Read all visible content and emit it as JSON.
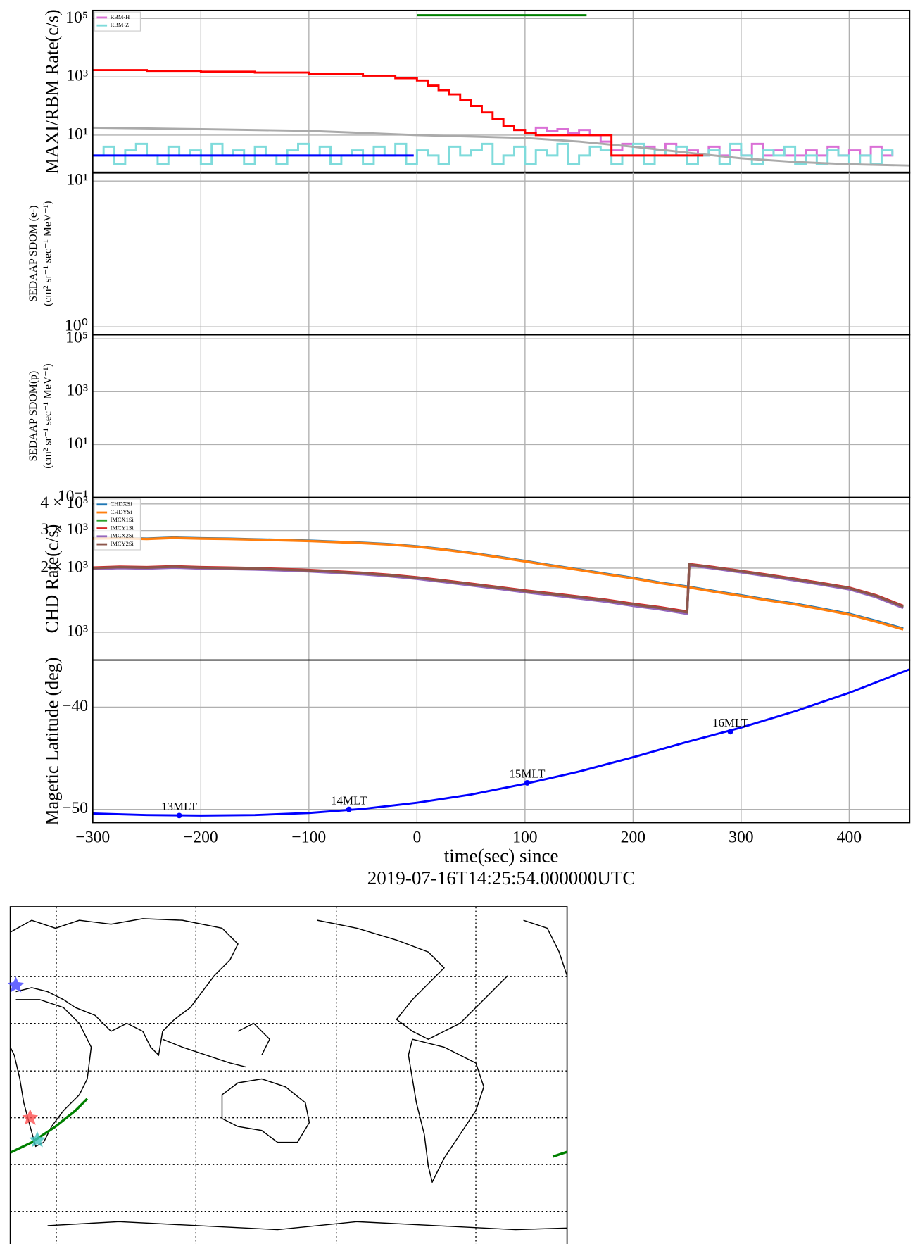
{
  "chart_data": [
    {
      "type": "line",
      "ylabel": [
        "MAXI/RBM Rate(c/s)"
      ],
      "log_y": true,
      "grid": true,
      "legend": "upper left",
      "xlim": [
        -300,
        456
      ],
      "xticks": [
        -300,
        -200,
        -100,
        0,
        100,
        200,
        300,
        400
      ],
      "ylim": [
        0.5,
        190000
      ],
      "yticks": [
        {
          "value": 10,
          "label": "10¹"
        },
        {
          "value": 1000,
          "label": "10³"
        },
        {
          "value": 100000,
          "label": "10⁵"
        }
      ],
      "series": [
        {
          "name": "RBM-H",
          "color": "#da70d6",
          "step": true,
          "x": [
            80,
            90,
            100,
            110,
            120,
            130,
            140,
            150,
            160,
            170,
            180,
            190,
            200,
            210,
            220,
            230,
            240,
            250,
            260,
            270,
            280,
            290,
            300,
            310,
            320,
            330,
            340,
            350,
            360,
            370,
            380,
            390,
            400,
            410,
            420,
            430,
            440
          ],
          "values": [
            20,
            15,
            12,
            18,
            14,
            16,
            12,
            15,
            10,
            6,
            3,
            5,
            2,
            4,
            3,
            5,
            2,
            3,
            2,
            4,
            2,
            3,
            2,
            5,
            2,
            3,
            2,
            2,
            3,
            2,
            4,
            2,
            3,
            2,
            4,
            2,
            3
          ]
        },
        {
          "name": "RBM-Z",
          "color": "#7fdbdb",
          "step": true,
          "x": [
            -300,
            -290,
            -280,
            -270,
            -260,
            -250,
            -240,
            -230,
            -220,
            -210,
            -200,
            -190,
            -180,
            -170,
            -160,
            -150,
            -140,
            -130,
            -120,
            -110,
            -100,
            -90,
            -80,
            -70,
            -60,
            -50,
            -40,
            -30,
            -20,
            -10,
            0,
            10,
            20,
            30,
            40,
            50,
            60,
            70,
            80,
            90,
            100,
            110,
            120,
            130,
            140,
            150,
            160,
            170,
            180,
            190,
            200,
            210,
            220,
            230,
            240,
            250,
            260,
            270,
            280,
            290,
            300,
            310,
            320,
            330,
            340,
            350,
            360,
            370,
            380,
            390,
            400,
            410,
            420,
            430,
            440
          ],
          "values": [
            2,
            4,
            1,
            3,
            5,
            2,
            1,
            4,
            2,
            3,
            1,
            5,
            2,
            3,
            1,
            4,
            2,
            1,
            3,
            5,
            2,
            4,
            1,
            2,
            3,
            1,
            4,
            2,
            5,
            1,
            3,
            2,
            1,
            4,
            2,
            3,
            5,
            1,
            2,
            4,
            1,
            3,
            2,
            5,
            1,
            2,
            4,
            3,
            1,
            2,
            5,
            1,
            3,
            2,
            4,
            1,
            2,
            3,
            1,
            5,
            2,
            1,
            3,
            2,
            4,
            1,
            2,
            1,
            3,
            2,
            1,
            2,
            1,
            3,
            2
          ]
        },
        {
          "color": "#aaaaaa",
          "x": [
            -300,
            -200,
            -100,
            0,
            100,
            150,
            200,
            250,
            300,
            350,
            400,
            456
          ],
          "values": [
            18,
            16,
            14,
            10,
            8,
            6,
            4,
            2.5,
            1.6,
            1.2,
            1.0,
            0.9
          ]
        },
        {
          "color": "#ff0000",
          "step": true,
          "x": [
            -300,
            -250,
            -200,
            -150,
            -100,
            -50,
            -20,
            0,
            10,
            20,
            30,
            40,
            50,
            60,
            70,
            80,
            90,
            100,
            110,
            160,
            180,
            265
          ],
          "values": [
            1700,
            1600,
            1500,
            1400,
            1250,
            1100,
            900,
            750,
            500,
            350,
            250,
            160,
            100,
            60,
            35,
            20,
            15,
            12,
            10,
            10,
            2,
            2
          ]
        },
        {
          "color": "#0000ff",
          "step": true,
          "x": [
            -300,
            -3
          ],
          "values": [
            2,
            2
          ]
        },
        {
          "color": "#008000",
          "x": [
            0,
            157
          ],
          "values": [
            130000,
            130000
          ]
        }
      ]
    },
    {
      "type": "line",
      "ylabel": [
        "SEDAAP SDOM (e-)",
        "(cm² sr⁻¹ sec⁻¹ MeV⁻¹)"
      ],
      "log_y": true,
      "grid": true,
      "xlim": [
        -300,
        456
      ],
      "xticks": [
        -300,
        -200,
        -100,
        0,
        100,
        200,
        300,
        400
      ],
      "ylim": [
        0.88,
        11.5
      ],
      "yticks": [
        {
          "value": 1,
          "label": "10⁰"
        },
        {
          "value": 10,
          "label": "10¹"
        }
      ],
      "series": []
    },
    {
      "type": "line",
      "ylabel": [
        "SEDAAP SDOM(p)",
        "(cm² sr⁻¹ sec⁻¹ MeV⁻¹)"
      ],
      "log_y": true,
      "grid": true,
      "xlim": [
        -300,
        456
      ],
      "xticks": [
        -300,
        -200,
        -100,
        0,
        100,
        200,
        300,
        400
      ],
      "ylim": [
        0.1,
        140000
      ],
      "yticks": [
        {
          "value": 0.1,
          "label": "10⁻¹"
        },
        {
          "value": 10,
          "label": "10¹"
        },
        {
          "value": 1000,
          "label": "10³"
        },
        {
          "value": 100000,
          "label": "10⁵"
        }
      ],
      "series": []
    },
    {
      "type": "line",
      "ylabel": [
        "CHD Rate(c/s)"
      ],
      "log_y": true,
      "grid": true,
      "legend": "upper left",
      "xlim": [
        -300,
        456
      ],
      "xticks": [
        -300,
        -200,
        -100,
        0,
        100,
        200,
        300,
        400
      ],
      "ylim": [
        740,
        4290
      ],
      "yticks": [
        {
          "value": 1000,
          "label": "10³"
        },
        {
          "value": 2000,
          "label": "2 × 10³"
        },
        {
          "value": 3000,
          "label": "3 × 10³"
        },
        {
          "value": 4000,
          "label": "4 × 10³"
        }
      ],
      "series": [
        {
          "name": "CHDXSi",
          "color": "#1f77b4",
          "x": [
            -300,
            -275,
            -250,
            -225,
            -200,
            -175,
            -150,
            -125,
            -100,
            -75,
            -50,
            -25,
            0,
            25,
            50,
            75,
            100,
            125,
            150,
            175,
            200,
            225,
            250,
            275,
            300,
            325,
            350,
            375,
            400,
            425,
            450
          ],
          "values": [
            2760,
            2770,
            2750,
            2780,
            2760,
            2750,
            2730,
            2710,
            2690,
            2660,
            2630,
            2590,
            2530,
            2450,
            2360,
            2260,
            2160,
            2060,
            1970,
            1880,
            1800,
            1710,
            1640,
            1560,
            1490,
            1420,
            1360,
            1290,
            1220,
            1130,
            1040
          ]
        },
        {
          "name": "CHDYSi",
          "color": "#ff7f0e",
          "x": [
            -300,
            -275,
            -250,
            -225,
            -200,
            -175,
            -150,
            -125,
            -100,
            -75,
            -50,
            -25,
            0,
            25,
            50,
            75,
            100,
            125,
            150,
            175,
            200,
            225,
            250,
            275,
            300,
            325,
            350,
            375,
            400,
            425,
            450
          ],
          "values": [
            2750,
            2760,
            2740,
            2770,
            2750,
            2740,
            2720,
            2700,
            2680,
            2650,
            2620,
            2580,
            2520,
            2440,
            2350,
            2250,
            2150,
            2050,
            1960,
            1870,
            1790,
            1700,
            1630,
            1550,
            1480,
            1410,
            1350,
            1280,
            1210,
            1120,
            1030
          ]
        },
        {
          "name": "IMCX1Si",
          "color": "#2ca02c",
          "x": [
            -300,
            -275,
            -250,
            -225,
            -200,
            -175,
            -150,
            -125,
            -100,
            -75,
            -50,
            -25,
            0,
            25,
            50,
            75,
            100,
            125,
            150,
            175,
            200,
            225,
            250,
            252,
            275,
            300,
            325,
            350,
            375,
            400,
            425,
            450
          ],
          "values": [
            1990,
            2010,
            2000,
            2020,
            2000,
            1990,
            1980,
            1960,
            1940,
            1910,
            1880,
            1840,
            1790,
            1730,
            1670,
            1610,
            1550,
            1500,
            1450,
            1400,
            1340,
            1290,
            1230,
            2070,
            2000,
            1920,
            1840,
            1760,
            1680,
            1600,
            1470,
            1310
          ]
        },
        {
          "name": "IMCY1Si",
          "color": "#d62728",
          "x": [
            -300,
            -275,
            -250,
            -225,
            -200,
            -175,
            -150,
            -125,
            -100,
            -75,
            -50,
            -25,
            0,
            25,
            50,
            75,
            100,
            125,
            150,
            175,
            200,
            225,
            250,
            252,
            275,
            300,
            325,
            350,
            375,
            400,
            425,
            450
          ],
          "values": [
            2010,
            2030,
            2020,
            2040,
            2020,
            2010,
            2000,
            1980,
            1960,
            1930,
            1900,
            1860,
            1810,
            1750,
            1690,
            1630,
            1570,
            1520,
            1470,
            1420,
            1360,
            1310,
            1250,
            2090,
            2020,
            1940,
            1860,
            1780,
            1700,
            1620,
            1490,
            1330
          ]
        },
        {
          "name": "IMCX2Si",
          "color": "#9467bd",
          "x": [
            -300,
            -275,
            -250,
            -225,
            -200,
            -175,
            -150,
            -125,
            -100,
            -75,
            -50,
            -25,
            0,
            25,
            50,
            75,
            100,
            125,
            150,
            175,
            200,
            225,
            250,
            252,
            275,
            300,
            325,
            350,
            375,
            400,
            425,
            450
          ],
          "values": [
            1980,
            2000,
            1990,
            2010,
            1990,
            1980,
            1970,
            1950,
            1930,
            1900,
            1870,
            1830,
            1780,
            1720,
            1660,
            1600,
            1540,
            1490,
            1440,
            1390,
            1330,
            1280,
            1220,
            2060,
            1990,
            1910,
            1830,
            1750,
            1670,
            1590,
            1460,
            1300
          ]
        },
        {
          "name": "IMCY2Si",
          "color": "#8c564b",
          "x": [
            -300,
            -275,
            -250,
            -225,
            -200,
            -175,
            -150,
            -125,
            -100,
            -75,
            -50,
            -25,
            0,
            25,
            50,
            75,
            100,
            125,
            150,
            175,
            200,
            225,
            250,
            252,
            275,
            300,
            325,
            350,
            375,
            400,
            425,
            450
          ],
          "values": [
            2000,
            2020,
            2010,
            2030,
            2010,
            2000,
            1990,
            1970,
            1950,
            1920,
            1890,
            1850,
            1800,
            1740,
            1680,
            1620,
            1560,
            1510,
            1460,
            1410,
            1350,
            1300,
            1240,
            2080,
            2010,
            1930,
            1850,
            1770,
            1690,
            1610,
            1480,
            1320
          ]
        }
      ]
    },
    {
      "type": "line",
      "ylabel": [
        "Magetic Latitude  (deg)"
      ],
      "log_y": false,
      "grid": true,
      "xlim": [
        -300,
        456
      ],
      "xticks": [
        {
          "value": -300,
          "label": "−300"
        },
        {
          "value": -200,
          "label": "−200"
        },
        {
          "value": -100,
          "label": "−100"
        },
        0,
        100,
        200,
        300,
        400
      ],
      "xlabel": [
        "time(sec) since",
        "2019-07-16T14:25:54.000000UTC"
      ],
      "ylim": [
        -51.3,
        -35.4
      ],
      "yticks": [
        {
          "value": -50,
          "label": "−50"
        },
        {
          "value": -40,
          "label": "−40"
        }
      ],
      "series": [
        {
          "color": "#0000ff",
          "x": [
            -300,
            -250,
            -200,
            -150,
            -100,
            -50,
            0,
            50,
            100,
            150,
            200,
            250,
            300,
            350,
            400,
            456
          ],
          "values": [
            -50.4,
            -50.55,
            -50.6,
            -50.55,
            -50.35,
            -49.95,
            -49.35,
            -48.55,
            -47.5,
            -46.3,
            -44.9,
            -43.4,
            -42.0,
            -40.4,
            -38.6,
            -36.3
          ]
        }
      ],
      "annotations": [
        {
          "text": "13MLT",
          "x": -220,
          "y": -50.6
        },
        {
          "text": "14MLT",
          "x": -63,
          "y": -50.0
        },
        {
          "text": "15MLT",
          "x": 102,
          "y": -47.4
        },
        {
          "text": "16MLT",
          "x": 290,
          "y": -42.4
        }
      ]
    }
  ]
}
